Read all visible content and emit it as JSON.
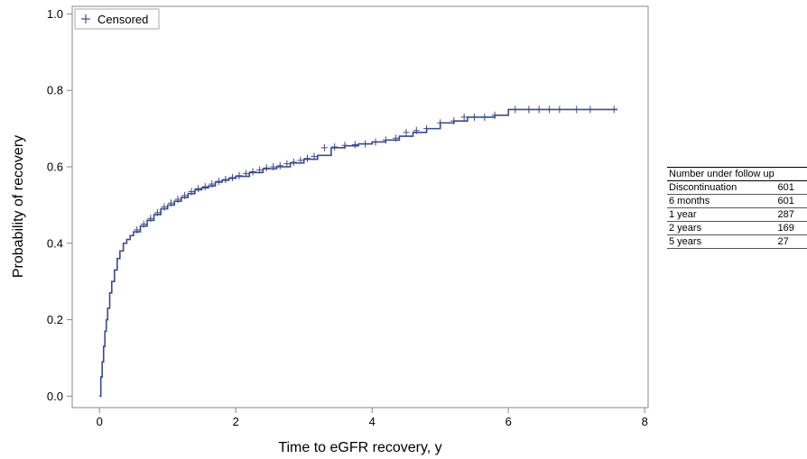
{
  "chart_data": {
    "type": "line",
    "xlabel": "Time to eGFR recovery, y",
    "ylabel": "Probability of recovery",
    "xlim": [
      -0.4,
      8.05
    ],
    "ylim": [
      -0.03,
      1.02
    ],
    "x_ticks": [
      0,
      2,
      4,
      6,
      8
    ],
    "y_ticks": [
      0.0,
      0.2,
      0.4,
      0.6,
      0.8,
      1.0
    ],
    "x_tick_labels": [
      "0",
      "2",
      "4",
      "6",
      "8"
    ],
    "y_tick_labels": [
      "0.0",
      "0.2",
      "0.4",
      "0.6",
      "0.8",
      "1.0"
    ],
    "legend": {
      "placement": "top-left",
      "entries": [
        {
          "marker": "+",
          "label": "Censored"
        }
      ]
    },
    "colors": {
      "line": "#3b4a8c",
      "frame": "#888888"
    },
    "grid": false,
    "series": [
      {
        "step": true,
        "x": [
          0,
          0.02,
          0.04,
          0.06,
          0.08,
          0.1,
          0.12,
          0.15,
          0.18,
          0.22,
          0.26,
          0.3,
          0.35,
          0.4,
          0.45,
          0.5,
          0.6,
          0.7,
          0.8,
          0.9,
          1.0,
          1.1,
          1.2,
          1.3,
          1.4,
          1.5,
          1.6,
          1.7,
          1.8,
          1.9,
          2.0,
          2.2,
          2.4,
          2.6,
          2.8,
          3.0,
          3.2,
          3.4,
          3.6,
          3.8,
          4.0,
          4.2,
          4.4,
          4.6,
          4.8,
          5.0,
          5.2,
          5.4,
          5.6,
          5.8,
          6.0,
          6.2,
          6.5,
          7.0,
          7.6
        ],
        "y": [
          0.0,
          0.05,
          0.09,
          0.13,
          0.17,
          0.2,
          0.23,
          0.27,
          0.3,
          0.33,
          0.36,
          0.38,
          0.4,
          0.41,
          0.42,
          0.43,
          0.445,
          0.46,
          0.475,
          0.49,
          0.5,
          0.51,
          0.52,
          0.53,
          0.54,
          0.545,
          0.55,
          0.56,
          0.565,
          0.57,
          0.575,
          0.585,
          0.595,
          0.6,
          0.61,
          0.62,
          0.63,
          0.65,
          0.655,
          0.66,
          0.665,
          0.67,
          0.68,
          0.69,
          0.7,
          0.715,
          0.72,
          0.73,
          0.73,
          0.735,
          0.75,
          0.75,
          0.75,
          0.75,
          0.75
        ]
      }
    ],
    "censored": {
      "x": [
        0.55,
        0.65,
        0.75,
        0.85,
        0.95,
        1.05,
        1.15,
        1.25,
        1.35,
        1.45,
        1.55,
        1.65,
        1.75,
        1.85,
        1.95,
        2.05,
        2.15,
        2.25,
        2.35,
        2.45,
        2.55,
        2.65,
        2.75,
        2.85,
        2.95,
        3.05,
        3.15,
        3.3,
        3.45,
        3.6,
        3.75,
        3.9,
        4.05,
        4.2,
        4.35,
        4.5,
        4.65,
        4.8,
        5.0,
        5.2,
        5.35,
        5.5,
        5.65,
        5.8,
        6.1,
        6.3,
        6.45,
        6.6,
        6.75,
        7.0,
        7.2,
        7.55
      ],
      "y": [
        0.435,
        0.45,
        0.465,
        0.48,
        0.495,
        0.505,
        0.515,
        0.525,
        0.535,
        0.543,
        0.548,
        0.555,
        0.562,
        0.567,
        0.572,
        0.577,
        0.582,
        0.587,
        0.592,
        0.597,
        0.6,
        0.603,
        0.608,
        0.612,
        0.617,
        0.622,
        0.627,
        0.65,
        0.652,
        0.656,
        0.658,
        0.66,
        0.665,
        0.67,
        0.675,
        0.69,
        0.695,
        0.7,
        0.715,
        0.72,
        0.73,
        0.73,
        0.73,
        0.735,
        0.75,
        0.75,
        0.75,
        0.75,
        0.75,
        0.75,
        0.75,
        0.75
      ]
    }
  },
  "followup_table": {
    "header": "Number under follow up",
    "rows": [
      {
        "label": "Discontinuation",
        "value": "601"
      },
      {
        "label": "6 months",
        "value": "601"
      },
      {
        "label": "1 year",
        "value": "287"
      },
      {
        "label": "2 years",
        "value": "169"
      },
      {
        "label": "5 years",
        "value": "27"
      }
    ]
  }
}
